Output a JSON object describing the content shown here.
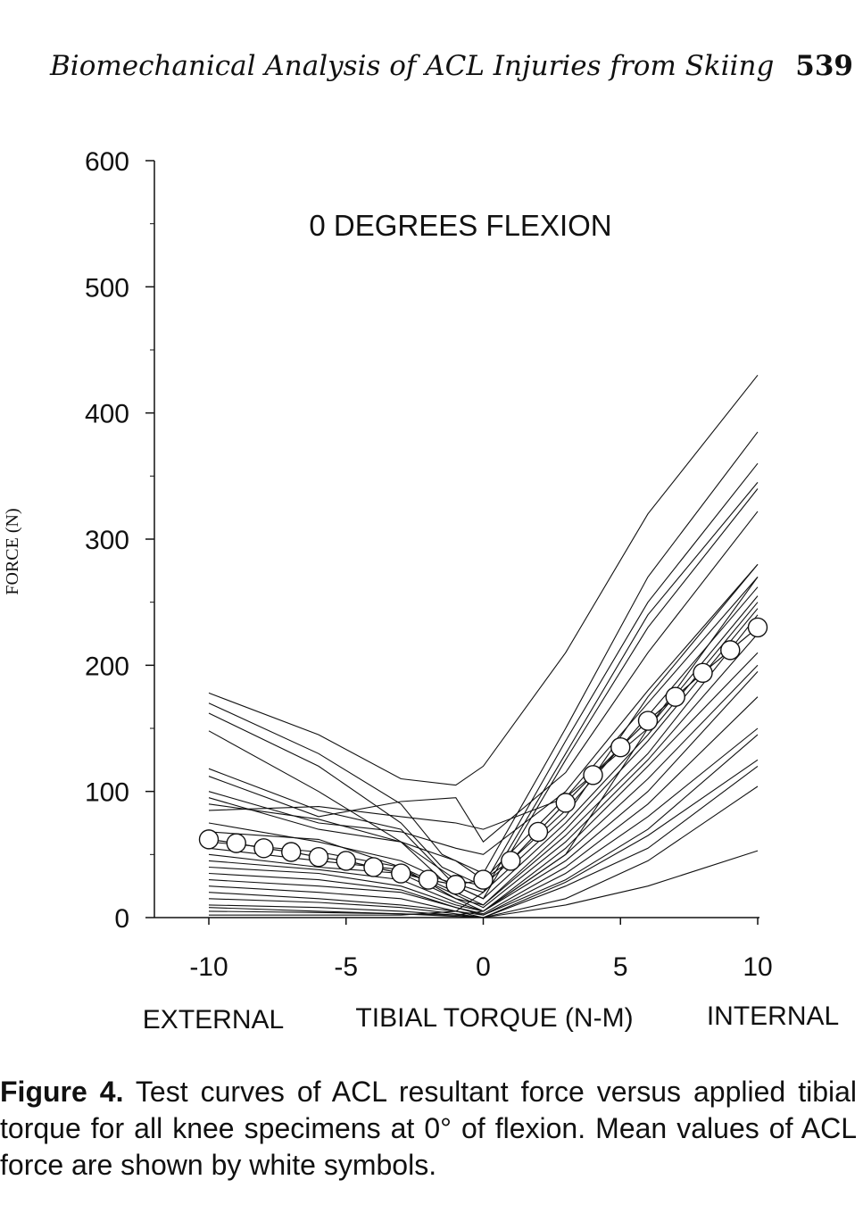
{
  "header": {
    "running_title": "Biomechanical Analysis of ACL Injuries from Skiing",
    "page_number": "539"
  },
  "caption": {
    "label": "Figure 4.",
    "text": "Test curves of ACL resultant force versus applied tibial torque for all knee specimens at 0° of flexion. Mean values of ACL force are shown by white symbols."
  },
  "chart_data": {
    "type": "line",
    "title": "",
    "annotation": "0 DEGREES FLEXION",
    "ylabel": "FORCE (N)",
    "xlabel": "TIBIAL TORQUE (N-M)",
    "xlabel_left": "EXTERNAL",
    "xlabel_right": "INTERNAL",
    "xlim": [
      -10,
      10
    ],
    "ylim": [
      0,
      600
    ],
    "xticks": [
      -10,
      -5,
      0,
      5,
      10
    ],
    "yticks": [
      0,
      100,
      200,
      300,
      400,
      500,
      600
    ],
    "grid": false,
    "mean_series": {
      "marker": "white-circle",
      "x": [
        -10,
        -9,
        -8,
        -7,
        -6,
        -5,
        -4,
        -3,
        -2,
        -1,
        0,
        1,
        2,
        3,
        4,
        5,
        6,
        7,
        8,
        9,
        10
      ],
      "y": [
        62,
        59,
        55,
        52,
        48,
        45,
        40,
        35,
        30,
        26,
        30,
        45,
        68,
        91,
        113,
        135,
        156,
        175,
        194,
        212,
        230
      ]
    },
    "specimen_curves": [
      {
        "x": [
          -10,
          -6,
          -3,
          -1,
          0,
          3,
          6,
          10
        ],
        "y": [
          178,
          145,
          110,
          105,
          120,
          210,
          320,
          430
        ]
      },
      {
        "x": [
          -10,
          -6,
          -3,
          -1.5,
          0,
          3,
          6,
          10
        ],
        "y": [
          170,
          130,
          90,
          50,
          35,
          150,
          270,
          385
        ]
      },
      {
        "x": [
          -10,
          -6,
          -3,
          -1.5,
          0,
          3,
          6,
          10
        ],
        "y": [
          162,
          120,
          75,
          40,
          25,
          140,
          250,
          360
        ]
      },
      {
        "x": [
          -10,
          -6,
          -3,
          -1.5,
          0,
          3,
          6,
          10
        ],
        "y": [
          148,
          100,
          60,
          30,
          20,
          130,
          240,
          345
        ]
      },
      {
        "x": [
          -10,
          -6,
          -3,
          -1,
          0,
          3,
          6,
          10
        ],
        "y": [
          118,
          85,
          70,
          25,
          15,
          125,
          230,
          340
        ]
      },
      {
        "x": [
          -10,
          -6,
          -3,
          -1,
          0,
          3,
          6,
          10
        ],
        "y": [
          112,
          80,
          92,
          95,
          60,
          115,
          210,
          322
        ]
      },
      {
        "x": [
          -10,
          -6,
          -3,
          -1,
          0,
          3,
          6,
          10
        ],
        "y": [
          100,
          75,
          68,
          55,
          50,
          100,
          180,
          280
        ]
      },
      {
        "x": [
          -10,
          -6,
          -3,
          -1,
          0,
          3,
          6,
          10
        ],
        "y": [
          95,
          70,
          60,
          45,
          30,
          95,
          170,
          270
        ]
      },
      {
        "x": [
          -10,
          -6,
          -3,
          -1,
          0,
          3,
          6,
          10
        ],
        "y": [
          90,
          78,
          60,
          30,
          25,
          85,
          160,
          262
        ]
      },
      {
        "x": [
          -10,
          -6,
          -3,
          -1,
          0,
          3,
          6,
          10
        ],
        "y": [
          85,
          88,
          80,
          75,
          70,
          95,
          150,
          255
        ]
      },
      {
        "x": [
          -10,
          -6,
          -3,
          -1,
          0,
          3,
          6,
          10
        ],
        "y": [
          75,
          60,
          45,
          25,
          15,
          75,
          145,
          250
        ]
      },
      {
        "x": [
          -10,
          -6,
          -3,
          -1,
          0,
          3,
          6,
          10
        ],
        "y": [
          68,
          62,
          40,
          20,
          10,
          70,
          140,
          245
        ]
      },
      {
        "x": [
          -10,
          -6,
          -3,
          -1,
          0,
          3,
          6,
          10
        ],
        "y": [
          60,
          52,
          40,
          15,
          10,
          65,
          130,
          240
        ]
      },
      {
        "x": [
          -10,
          -6,
          -3,
          -1,
          0,
          3,
          6,
          10
        ],
        "y": [
          55,
          45,
          38,
          18,
          8,
          60,
          125,
          225
        ]
      },
      {
        "x": [
          -10,
          -6,
          -3,
          -1,
          0,
          3,
          6,
          10
        ],
        "y": [
          50,
          40,
          35,
          15,
          5,
          55,
          120,
          210
        ]
      },
      {
        "x": [
          -10,
          -6,
          -3,
          -1,
          0,
          3,
          6,
          10
        ],
        "y": [
          45,
          38,
          30,
          12,
          5,
          50,
          110,
          200
        ]
      },
      {
        "x": [
          -10,
          -6,
          -3,
          -1,
          0,
          3,
          6,
          10
        ],
        "y": [
          40,
          35,
          25,
          10,
          5,
          45,
          100,
          195
        ]
      },
      {
        "x": [
          -10,
          -6,
          -3,
          -1,
          0,
          3,
          6,
          10
        ],
        "y": [
          35,
          30,
          22,
          8,
          3,
          40,
          90,
          175
        ]
      },
      {
        "x": [
          -10,
          -6,
          -3,
          -1,
          0,
          3,
          6,
          10
        ],
        "y": [
          30,
          25,
          20,
          8,
          2,
          35,
          80,
          150
        ]
      },
      {
        "x": [
          -10,
          -6,
          -3,
          -1,
          0,
          3,
          6,
          10
        ],
        "y": [
          25,
          20,
          15,
          5,
          2,
          30,
          70,
          145
        ]
      },
      {
        "x": [
          -10,
          -6,
          -3,
          -1,
          0,
          3,
          6,
          10
        ],
        "y": [
          20,
          15,
          10,
          5,
          0,
          28,
          65,
          125
        ]
      },
      {
        "x": [
          -10,
          -6,
          -3,
          -1,
          0,
          3,
          6,
          10
        ],
        "y": [
          15,
          12,
          8,
          3,
          0,
          25,
          55,
          120
        ]
      },
      {
        "x": [
          -10,
          -6,
          -3,
          -1,
          0,
          3,
          6,
          10
        ],
        "y": [
          10,
          8,
          5,
          2,
          0,
          15,
          45,
          104
        ]
      },
      {
        "x": [
          -10,
          -6,
          -3,
          -1,
          0,
          3,
          6,
          10
        ],
        "y": [
          8,
          5,
          3,
          1,
          0,
          10,
          25,
          53
        ]
      },
      {
        "x": [
          -10,
          -6,
          -3,
          -1,
          0,
          3,
          6,
          10
        ],
        "y": [
          5,
          4,
          3,
          2,
          5,
          50,
          150,
          270
        ]
      },
      {
        "x": [
          -10,
          -6,
          -3,
          -1,
          0,
          3,
          6,
          10
        ],
        "y": [
          2,
          2,
          2,
          5,
          20,
          80,
          175,
          280
        ]
      }
    ]
  }
}
